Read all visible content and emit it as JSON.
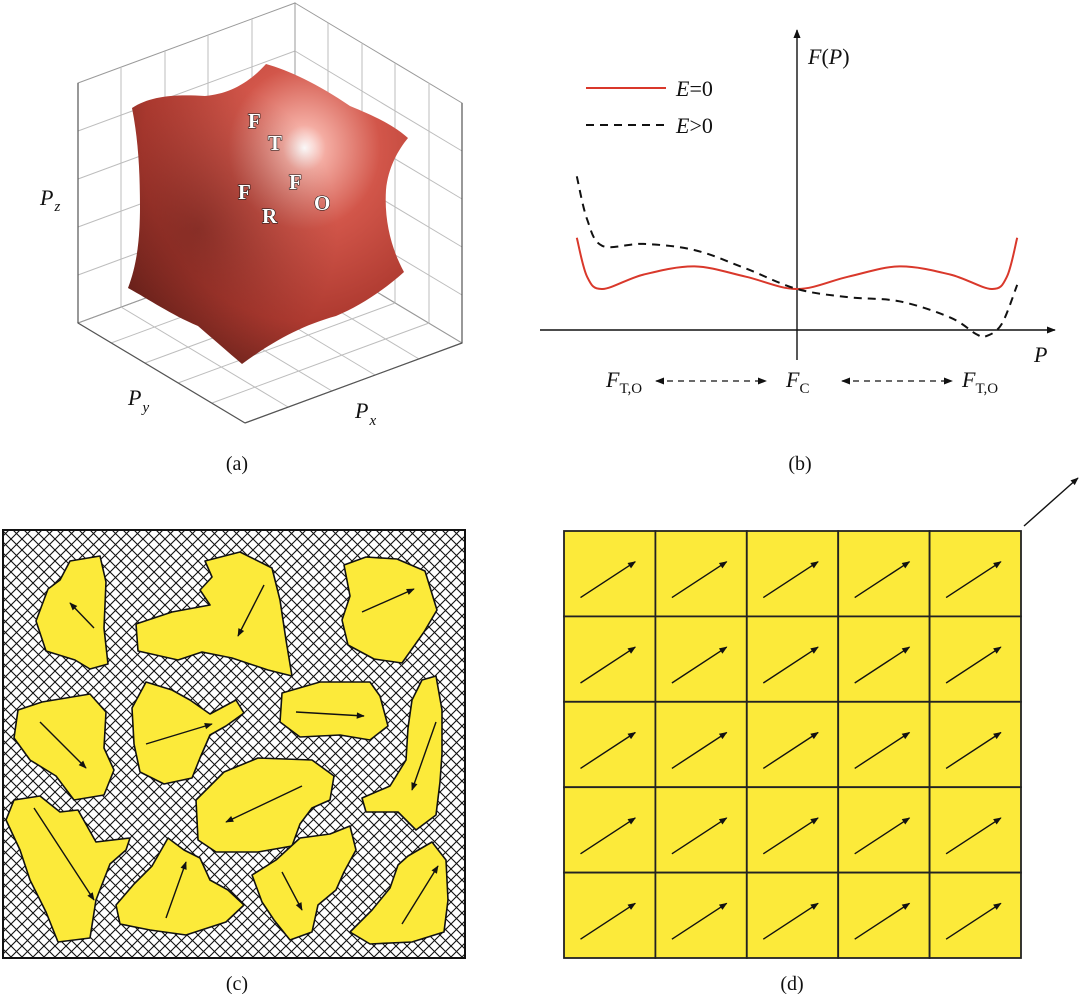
{
  "panel_a": {
    "caption": "(a)",
    "axis_labels": {
      "pz": "P",
      "pz_sub": "z",
      "py": "P",
      "py_sub": "y",
      "px": "P",
      "px_sub": "x"
    },
    "letters": {
      "ft_f": "F",
      "ft_t": "T",
      "fo_f": "F",
      "fo_o": "O",
      "fr_f": "F",
      "fr_r": "R"
    },
    "colors": {
      "surface": "#c0463a",
      "highlight": "#f2a49a",
      "shadow": "#5e1f17"
    }
  },
  "panel_b": {
    "caption": "(b)",
    "y_label": {
      "f": "F",
      "open": "(",
      "p": "P",
      "close": ")"
    },
    "x_label": "P",
    "legend": [
      {
        "var": "E",
        "rest": "=0",
        "color": "#d9382b",
        "dash": "solid"
      },
      {
        "var": "E",
        "rest": ">0",
        "color": "#111111",
        "dash": "dashed"
      }
    ],
    "states": [
      {
        "f": "F",
        "sub": "T,O"
      },
      {
        "f": "F",
        "sub": "C"
      },
      {
        "f": "F",
        "sub": "T,O"
      }
    ],
    "chart_data": {
      "type": "line",
      "x_range": [
        -1,
        1
      ],
      "series": [
        {
          "name": "E=0",
          "color": "#d9382b",
          "points": [
            [
              -0.86,
              0.45
            ],
            [
              -0.82,
              0.26
            ],
            [
              -0.76,
              0.2
            ],
            [
              -0.6,
              0.27
            ],
            [
              -0.4,
              0.31
            ],
            [
              -0.2,
              0.26
            ],
            [
              0,
              0.2
            ],
            [
              0.2,
              0.26
            ],
            [
              0.4,
              0.31
            ],
            [
              0.6,
              0.27
            ],
            [
              0.76,
              0.2
            ],
            [
              0.82,
              0.26
            ],
            [
              0.86,
              0.45
            ]
          ]
        },
        {
          "name": "E>0",
          "color": "#111111",
          "points": [
            [
              -0.86,
              0.75
            ],
            [
              -0.82,
              0.54
            ],
            [
              -0.76,
              0.41
            ],
            [
              -0.6,
              0.42
            ],
            [
              -0.4,
              0.39
            ],
            [
              -0.2,
              0.3
            ],
            [
              0,
              0.2
            ],
            [
              0.2,
              0.16
            ],
            [
              0.4,
              0.14
            ],
            [
              0.6,
              0.06
            ],
            [
              0.7,
              -0.02
            ],
            [
              0.74,
              -0.03
            ],
            [
              0.8,
              0.03
            ],
            [
              0.86,
              0.22
            ]
          ]
        }
      ]
    }
  },
  "panel_c": {
    "caption": "(c)",
    "colors": {
      "grain": "#fcea3a",
      "matrix": "#ffffff",
      "hatch": "#000000"
    }
  },
  "panel_d": {
    "caption": "(d)",
    "rows": 5,
    "cols": 5,
    "colors": {
      "grain": "#fcea3a",
      "border": "#222222"
    }
  }
}
